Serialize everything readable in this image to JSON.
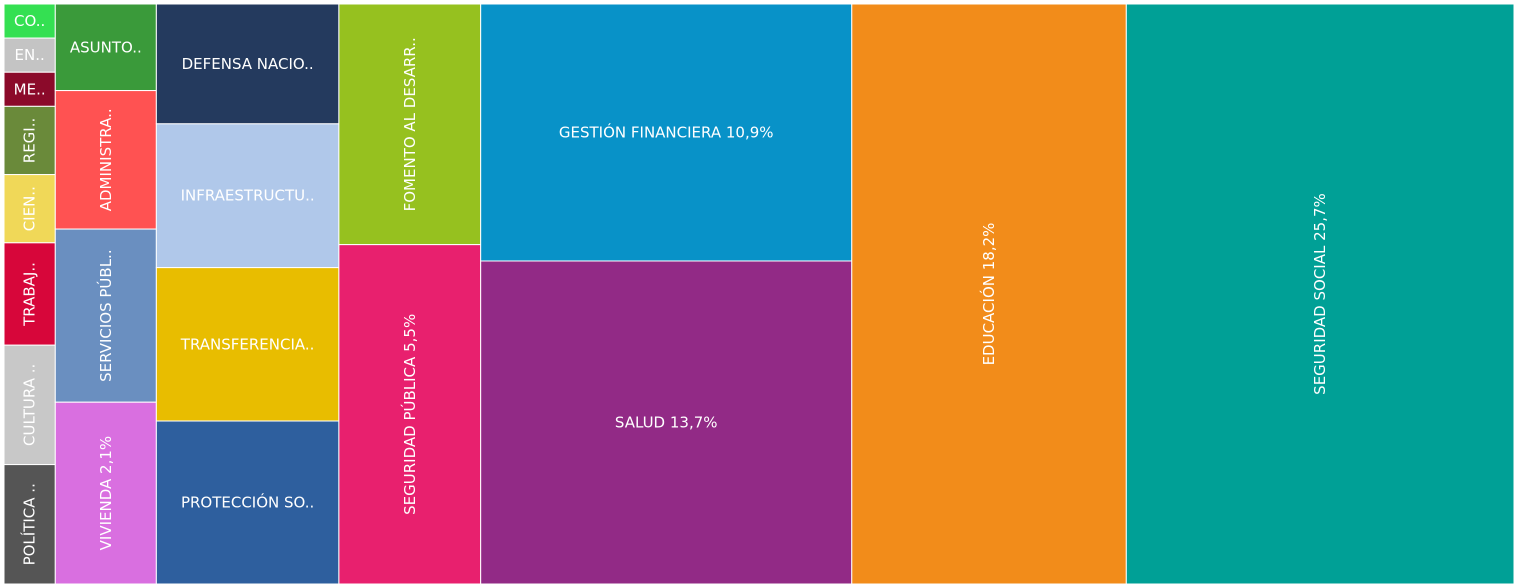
{
  "chart_data": {
    "type": "treemap",
    "categories": [
      "CO..",
      "EN..",
      "ME..",
      "REGI..",
      "CIEN..",
      "TRABAJ..",
      "CULTURA ..",
      "POLÍTICA ..",
      "ASUNTO..",
      "ADMINISTRA..",
      "SERVICIOS PÚBL..",
      "VIVIENDA",
      "DEFENSA NACIO..",
      "INFRAESTRUCTU..",
      "TRANSFERENCIA..",
      "PROTECCIÓN SO..",
      "FOMENTO AL DESARR..",
      "SEGURIDAD PÚBLICA",
      "GESTIÓN FINANCIERA",
      "SALUD",
      "EDUCACIÓN",
      "SEGURIDAD SOCIAL"
    ],
    "values": [
      0.2,
      0.2,
      0.2,
      0.4,
      0.4,
      0.6,
      0.7,
      0.7,
      1.0,
      1.6,
      2.0,
      2.1,
      2.5,
      3.0,
      3.2,
      3.4,
      3.9,
      5.5,
      10.9,
      13.7,
      18.2,
      25.7
    ],
    "value_labels": [
      null,
      null,
      null,
      null,
      null,
      null,
      null,
      null,
      null,
      null,
      null,
      "2,1%",
      null,
      null,
      null,
      null,
      null,
      "5,5%",
      "10,9%",
      "13,7%",
      "18,2%",
      "25,7%"
    ],
    "colors": [
      "#34e052",
      "#c4c4c4",
      "#8b0a2a",
      "#6a8a3a",
      "#f0d858",
      "#d7063a",
      "#c8c8c8",
      "#555555",
      "#3a9a3a",
      "#ff5252",
      "#6a8fc0",
      "#d96fe0",
      "#243a5e",
      "#b0c8ea",
      "#e8bd00",
      "#2e5f9e",
      "#96c11f",
      "#e8206e",
      "#0892c8",
      "#922a86",
      "#f28c1a",
      "#00a096"
    ]
  }
}
